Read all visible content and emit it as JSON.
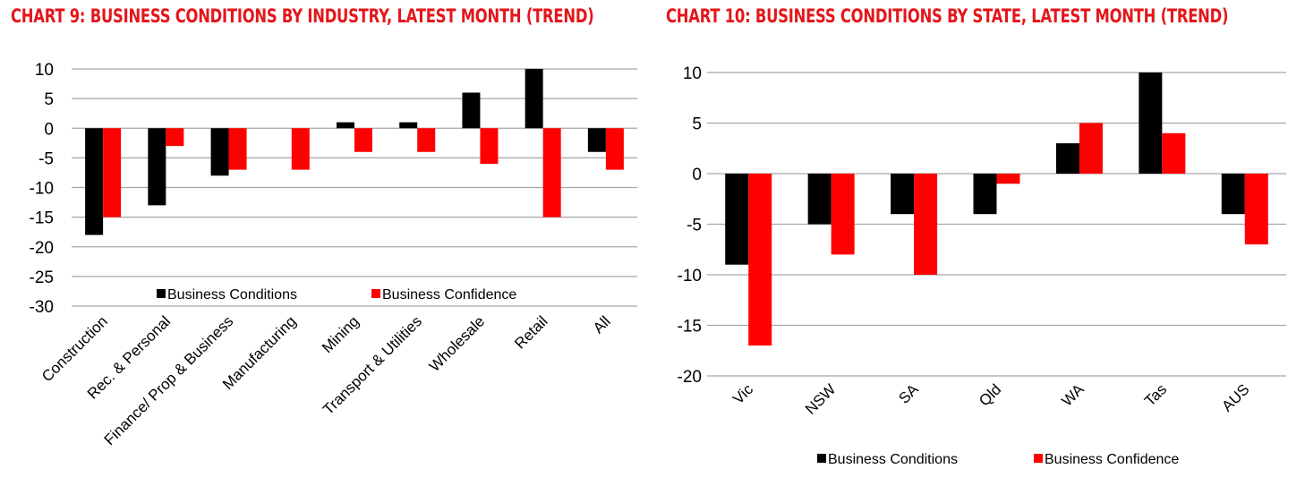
{
  "charts": [
    {
      "title": "CHART 9: BUSINESS CONDITIONS BY INDUSTRY, LATEST MONTH (TREND)"
    },
    {
      "title": "CHART 10: BUSINESS CONDITIONS BY STATE, LATEST MONTH (TREND)"
    }
  ],
  "colors": {
    "conditions": "#000000",
    "confidence": "#ff0000",
    "title": "#e4161a",
    "grid": "#a6a6a6"
  },
  "chart_data": [
    {
      "type": "bar",
      "title": "CHART 9: BUSINESS CONDITIONS BY INDUSTRY, LATEST MONTH (TREND)",
      "categories": [
        "Construction",
        "Rec. & Personal",
        "Finance/ Prop & Business",
        "Manufacturing",
        "Mining",
        "Transport & Utilities",
        "Wholesale",
        "Retail",
        "All"
      ],
      "series": [
        {
          "name": "Business Conditions",
          "values": [
            -18,
            -13,
            -8,
            0,
            1,
            1,
            6,
            10,
            -4
          ]
        },
        {
          "name": "Business Confidence",
          "values": [
            -15,
            -3,
            -7,
            -7,
            -4,
            -4,
            -6,
            -15,
            -7
          ]
        }
      ],
      "yticks": [
        10,
        5,
        0,
        -5,
        -10,
        -15,
        -20,
        -25,
        -30
      ],
      "ylim": [
        -30,
        10
      ],
      "xlabel": "",
      "ylabel": "",
      "legend": "bottom-inside",
      "grid": true
    },
    {
      "type": "bar",
      "title": "CHART 10: BUSINESS CONDITIONS BY STATE, LATEST MONTH (TREND)",
      "categories": [
        "Vic",
        "NSW",
        "SA",
        "Qld",
        "WA",
        "Tas",
        "AUS"
      ],
      "series": [
        {
          "name": "Business Conditions",
          "values": [
            -9,
            -5,
            -4,
            -4,
            3,
            10,
            -4
          ]
        },
        {
          "name": "Business Confidence",
          "values": [
            -17,
            -8,
            -10,
            -1,
            5,
            4,
            -7
          ]
        }
      ],
      "yticks": [
        10,
        5,
        0,
        -5,
        -10,
        -15,
        -20
      ],
      "ylim": [
        -20,
        10
      ],
      "xlabel": "",
      "ylabel": "",
      "legend": "bottom",
      "grid": true
    }
  ]
}
